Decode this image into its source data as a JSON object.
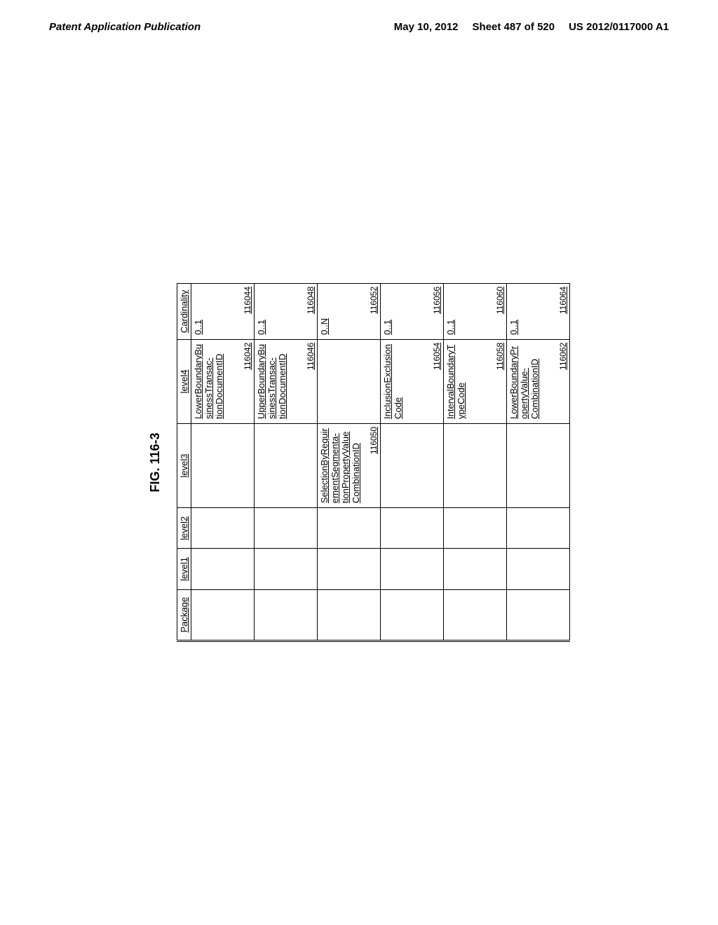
{
  "header": {
    "left": "Patent Application Publication",
    "date": "May 10, 2012",
    "sheet": "Sheet 487 of 520",
    "pubno": "US 2012/0117000 A1"
  },
  "figure_title": "FIG. 116-3",
  "columns": [
    "Package",
    "level1",
    "level2",
    "level3",
    "level4",
    "Cardinality"
  ],
  "rows": [
    {
      "level3_text": "",
      "level3_id": "",
      "level4_text": "LowerBoundaryBusinessTransac-tionDocumentID",
      "level4_id": "116042",
      "cardinality_text": "0..1",
      "cardinality_id": "116044"
    },
    {
      "level3_text": "",
      "level3_id": "",
      "level4_text": "UpperBoundaryBusinessTransac-tionDocumentID",
      "level4_id": "116046",
      "cardinality_text": "0..1",
      "cardinality_id": "116048"
    },
    {
      "level3_text": "SelectionByRequirementSegmenta-tionPropertyValueCombinationID",
      "level3_id": "116050",
      "level4_text": "",
      "level4_id": "",
      "cardinality_text": "0..N",
      "cardinality_id": "116052"
    },
    {
      "level3_text": "",
      "level3_id": "",
      "level4_text": "InclusionExclusionCode",
      "level4_id": "116054",
      "cardinality_text": "0..1",
      "cardinality_id": "116056"
    },
    {
      "level3_text": "",
      "level3_id": "",
      "level4_text": "IntervalBoundaryTypeCode",
      "level4_id": "116058",
      "cardinality_text": "0..1",
      "cardinality_id": "116060"
    },
    {
      "level3_text": "",
      "level3_id": "",
      "level4_text": "LowerBoundaryPropertyValue-CombinationID",
      "level4_id": "116062",
      "cardinality_text": "0..1",
      "cardinality_id": "116064"
    }
  ]
}
